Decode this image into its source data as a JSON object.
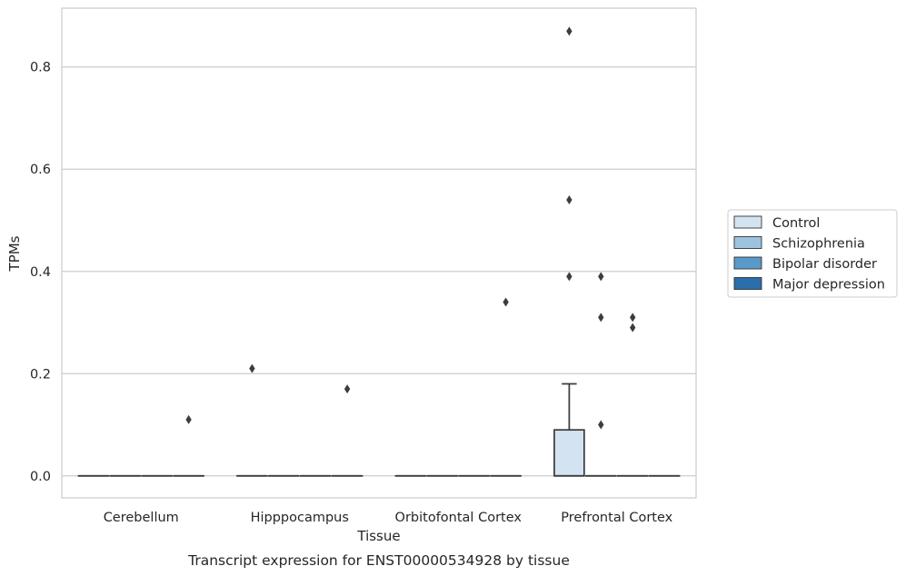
{
  "chart_data": {
    "type": "box",
    "xlabel": "Tissue",
    "ylabel": "TPMs",
    "caption": "Transcript expression for ENST00000534928 by tissue",
    "ylim": [
      -0.043,
      0.915
    ],
    "yticks": [
      0.0,
      0.2,
      0.4,
      0.6,
      0.8
    ],
    "ytick_labels": [
      "0.0",
      "0.2",
      "0.4",
      "0.6",
      "0.8"
    ],
    "grid": "horizontal",
    "legend_position": "right",
    "categories": [
      "Cerebellum",
      "Hipppocampus",
      "Orbitofontal Cortex",
      "Prefrontal Cortex"
    ],
    "series": [
      {
        "name": "Control",
        "color": "#d4e3f2",
        "boxes": [
          {
            "category": "Cerebellum",
            "q1": 0,
            "median": 0,
            "q3": 0,
            "whisker_low": 0,
            "whisker_high": 0,
            "outliers": []
          },
          {
            "category": "Hipppocampus",
            "q1": 0,
            "median": 0,
            "q3": 0,
            "whisker_low": 0,
            "whisker_high": 0,
            "outliers": [
              0.21
            ]
          },
          {
            "category": "Orbitofontal Cortex",
            "q1": 0,
            "median": 0,
            "q3": 0,
            "whisker_low": 0,
            "whisker_high": 0,
            "outliers": []
          },
          {
            "category": "Prefrontal Cortex",
            "q1": 0,
            "median": 0,
            "q3": 0.09,
            "whisker_low": 0,
            "whisker_high": 0.18,
            "outliers": [
              0.39,
              0.54,
              0.87
            ]
          }
        ]
      },
      {
        "name": "Schizophrenia",
        "color": "#9cc4e0",
        "boxes": [
          {
            "category": "Cerebellum",
            "q1": 0,
            "median": 0,
            "q3": 0,
            "whisker_low": 0,
            "whisker_high": 0,
            "outliers": []
          },
          {
            "category": "Hipppocampus",
            "q1": 0,
            "median": 0,
            "q3": 0,
            "whisker_low": 0,
            "whisker_high": 0,
            "outliers": []
          },
          {
            "category": "Orbitofontal Cortex",
            "q1": 0,
            "median": 0,
            "q3": 0,
            "whisker_low": 0,
            "whisker_high": 0,
            "outliers": []
          },
          {
            "category": "Prefrontal Cortex",
            "q1": 0,
            "median": 0,
            "q3": 0,
            "whisker_low": 0,
            "whisker_high": 0,
            "outliers": [
              0.1,
              0.31,
              0.39
            ]
          }
        ]
      },
      {
        "name": "Bipolar disorder",
        "color": "#5a9ac8",
        "boxes": [
          {
            "category": "Cerebellum",
            "q1": 0,
            "median": 0,
            "q3": 0,
            "whisker_low": 0,
            "whisker_high": 0,
            "outliers": []
          },
          {
            "category": "Hipppocampus",
            "q1": 0,
            "median": 0,
            "q3": 0,
            "whisker_low": 0,
            "whisker_high": 0,
            "outliers": []
          },
          {
            "category": "Orbitofontal Cortex",
            "q1": 0,
            "median": 0,
            "q3": 0,
            "whisker_low": 0,
            "whisker_high": 0,
            "outliers": []
          },
          {
            "category": "Prefrontal Cortex",
            "q1": 0,
            "median": 0,
            "q3": 0,
            "whisker_low": 0,
            "whisker_high": 0,
            "outliers": [
              0.29,
              0.31
            ]
          }
        ]
      },
      {
        "name": "Major depression",
        "color": "#2a6eab",
        "boxes": [
          {
            "category": "Cerebellum",
            "q1": 0,
            "median": 0,
            "q3": 0,
            "whisker_low": 0,
            "whisker_high": 0,
            "outliers": [
              0.11
            ]
          },
          {
            "category": "Hipppocampus",
            "q1": 0,
            "median": 0,
            "q3": 0,
            "whisker_low": 0,
            "whisker_high": 0,
            "outliers": [
              0.17
            ]
          },
          {
            "category": "Orbitofontal Cortex",
            "q1": 0,
            "median": 0,
            "q3": 0,
            "whisker_low": 0,
            "whisker_high": 0,
            "outliers": [
              0.34
            ]
          },
          {
            "category": "Prefrontal Cortex",
            "q1": 0,
            "median": 0,
            "q3": 0,
            "whisker_low": 0,
            "whisker_high": 0,
            "outliers": []
          }
        ]
      }
    ]
  },
  "colors": {
    "grid": "#cccccc",
    "axes_edge": "#cccccc",
    "box_edge": "#3d3d3d",
    "text": "#262626"
  }
}
